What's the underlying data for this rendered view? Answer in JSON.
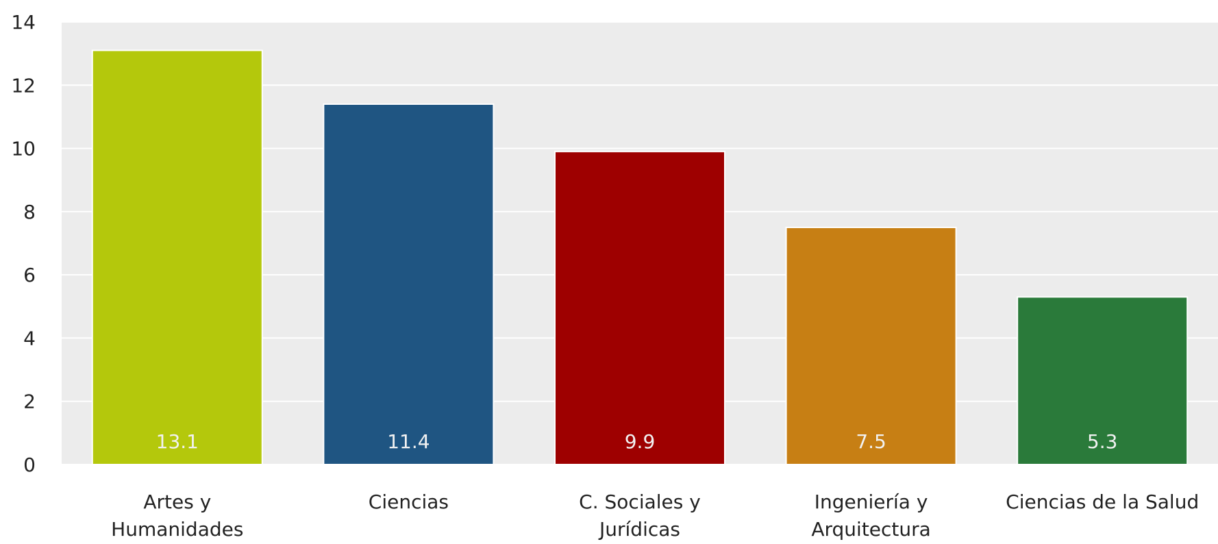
{
  "chart_data": {
    "type": "bar",
    "title": "",
    "xlabel": "",
    "ylabel": "",
    "categories": [
      [
        "Artes y",
        "Humanidades"
      ],
      [
        "Ciencias"
      ],
      [
        "C. Sociales y",
        "Jurídicas"
      ],
      [
        "Ingeniería y",
        "Arquitectura"
      ],
      [
        "Ciencias de la Salud"
      ]
    ],
    "values": [
      13.1,
      11.4,
      9.9,
      7.5,
      5.3
    ],
    "value_labels": [
      "13.1",
      "11.4",
      "9.9",
      "7.5",
      "5.3"
    ],
    "colors": [
      "#b4c80c",
      "#1f5582",
      "#9e0000",
      "#c77f14",
      "#2a7a3a"
    ],
    "ylim": [
      0,
      14
    ],
    "yticks": [
      0,
      2,
      4,
      6,
      8,
      10,
      12,
      14
    ],
    "grid": true,
    "legend": "none",
    "background_color": "#ececec",
    "grid_color": "#ffffff"
  }
}
